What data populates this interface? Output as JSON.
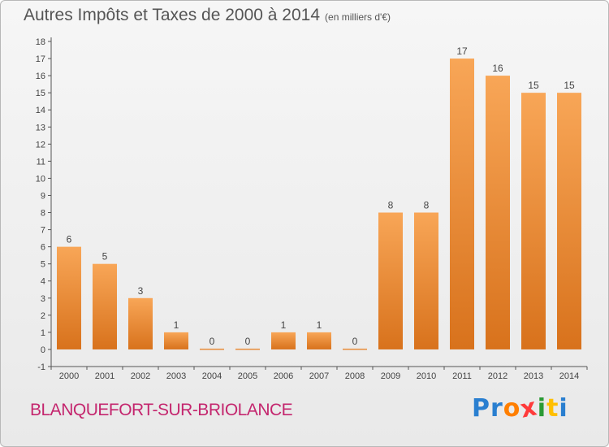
{
  "header": {
    "title": "Autres Impôts et Taxes de 2000 à 2014",
    "unit": "(en milliers d'€)"
  },
  "footer": {
    "commune": "BLANQUEFORT-SUR-BRIOLANCE",
    "logo_text": "Proxiti",
    "logo_colors": [
      "#2a7fd0",
      "#2a7fd0",
      "#ff7f00",
      "#ff3a3a",
      "#2a9a35",
      "#ffbf00",
      "#2a7fd0"
    ]
  },
  "colors": {
    "bar_light": "#f8a657",
    "bar_dark": "#d8721c",
    "axis": "#555555",
    "label": "#444444"
  },
  "chart_data": {
    "type": "bar",
    "categories": [
      "2000",
      "2001",
      "2002",
      "2003",
      "2004",
      "2005",
      "2006",
      "2007",
      "2008",
      "2009",
      "2010",
      "2011",
      "2012",
      "2013",
      "2014"
    ],
    "values": [
      6,
      5,
      3,
      1,
      0,
      0,
      1,
      1,
      0,
      8,
      8,
      17,
      16,
      15,
      15
    ],
    "data_labels": [
      "6",
      "5",
      "3",
      "1",
      "0",
      "0",
      "1",
      "1",
      "0",
      "8",
      "8",
      "17",
      "16",
      "15",
      "15"
    ],
    "y_ticks": [
      "-1",
      "0",
      "1",
      "2",
      "3",
      "4",
      "5",
      "6",
      "7",
      "8",
      "9",
      "10",
      "11",
      "12",
      "13",
      "14",
      "15",
      "16",
      "17",
      "18"
    ],
    "ylim": [
      -1,
      18
    ],
    "grid": false,
    "legend": "none"
  }
}
